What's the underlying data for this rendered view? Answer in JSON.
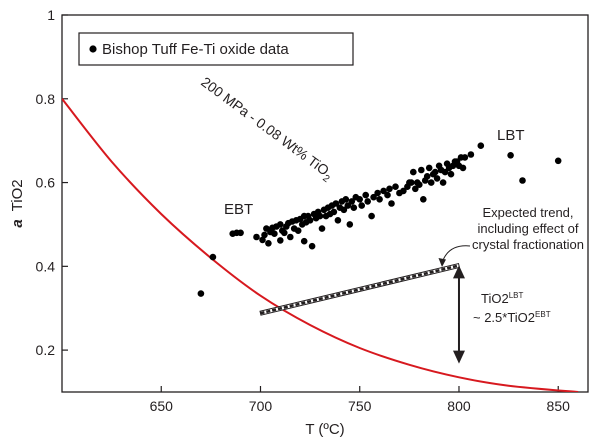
{
  "chart_data": {
    "type": "scatter",
    "xlabel": "T (ºC)",
    "ylabel_prefix": "a",
    "ylabel": "TiO2",
    "xlim": [
      600,
      865
    ],
    "ylim": [
      0.1,
      1.0
    ],
    "x_ticks": [
      650,
      700,
      750,
      800,
      850
    ],
    "y_ticks": [
      0.2,
      0.4,
      0.6,
      0.8,
      1.0
    ],
    "y_tick_labels": [
      "0.2",
      "0.4",
      "0.6",
      "0.8",
      "1"
    ],
    "grid": false,
    "legend": {
      "position": "top-left",
      "entries": [
        "Bishop Tuff Fe-Ti oxide data"
      ]
    },
    "series": [
      {
        "name": "Bishop Tuff Fe-Ti oxide data",
        "type": "scatter",
        "color": "#000000",
        "points": [
          [
            670,
            0.335
          ],
          [
            676,
            0.422
          ],
          [
            686,
            0.478
          ],
          [
            688,
            0.48
          ],
          [
            690,
            0.48
          ],
          [
            698,
            0.47
          ],
          [
            701,
            0.463
          ],
          [
            702,
            0.475
          ],
          [
            703,
            0.49
          ],
          [
            704,
            0.455
          ],
          [
            705,
            0.482
          ],
          [
            706,
            0.492
          ],
          [
            707,
            0.478
          ],
          [
            708,
            0.495
          ],
          [
            710,
            0.462
          ],
          [
            710,
            0.5
          ],
          [
            711,
            0.485
          ],
          [
            712,
            0.48
          ],
          [
            713,
            0.495
          ],
          [
            714,
            0.503
          ],
          [
            715,
            0.47
          ],
          [
            716,
            0.507
          ],
          [
            717,
            0.49
          ],
          [
            718,
            0.51
          ],
          [
            719,
            0.485
          ],
          [
            720,
            0.513
          ],
          [
            721,
            0.5
          ],
          [
            722,
            0.46
          ],
          [
            722,
            0.52
          ],
          [
            723,
            0.505
          ],
          [
            724,
            0.52
          ],
          [
            725,
            0.51
          ],
          [
            726,
            0.448
          ],
          [
            727,
            0.525
          ],
          [
            728,
            0.515
          ],
          [
            729,
            0.53
          ],
          [
            730,
            0.52
          ],
          [
            731,
            0.49
          ],
          [
            732,
            0.535
          ],
          [
            733,
            0.52
          ],
          [
            734,
            0.54
          ],
          [
            735,
            0.525
          ],
          [
            736,
            0.545
          ],
          [
            737,
            0.53
          ],
          [
            738,
            0.55
          ],
          [
            739,
            0.51
          ],
          [
            740,
            0.54
          ],
          [
            741,
            0.555
          ],
          [
            742,
            0.535
          ],
          [
            743,
            0.56
          ],
          [
            744,
            0.545
          ],
          [
            745,
            0.5
          ],
          [
            746,
            0.555
          ],
          [
            747,
            0.54
          ],
          [
            748,
            0.565
          ],
          [
            750,
            0.56
          ],
          [
            751,
            0.545
          ],
          [
            753,
            0.57
          ],
          [
            754,
            0.555
          ],
          [
            756,
            0.52
          ],
          [
            757,
            0.565
          ],
          [
            759,
            0.575
          ],
          [
            760,
            0.56
          ],
          [
            762,
            0.58
          ],
          [
            764,
            0.57
          ],
          [
            765,
            0.585
          ],
          [
            766,
            0.55
          ],
          [
            768,
            0.59
          ],
          [
            770,
            0.575
          ],
          [
            772,
            0.58
          ],
          [
            774,
            0.59
          ],
          [
            775,
            0.6
          ],
          [
            776,
            0.6
          ],
          [
            777,
            0.625
          ],
          [
            778,
            0.585
          ],
          [
            779,
            0.6
          ],
          [
            780,
            0.595
          ],
          [
            781,
            0.63
          ],
          [
            782,
            0.56
          ],
          [
            783,
            0.605
          ],
          [
            784,
            0.615
          ],
          [
            785,
            0.635
          ],
          [
            786,
            0.6
          ],
          [
            787,
            0.62
          ],
          [
            788,
            0.625
          ],
          [
            789,
            0.61
          ],
          [
            790,
            0.64
          ],
          [
            791,
            0.63
          ],
          [
            792,
            0.6
          ],
          [
            793,
            0.625
          ],
          [
            794,
            0.645
          ],
          [
            795,
            0.635
          ],
          [
            796,
            0.62
          ],
          [
            797,
            0.64
          ],
          [
            798,
            0.65
          ],
          [
            799,
            0.65
          ],
          [
            800,
            0.64
          ],
          [
            801,
            0.66
          ],
          [
            802,
            0.635
          ],
          [
            803,
            0.66
          ],
          [
            806,
            0.667
          ],
          [
            811,
            0.688
          ],
          [
            826,
            0.665
          ],
          [
            832,
            0.605
          ],
          [
            850,
            0.652
          ]
        ]
      },
      {
        "name": "200 MPa - 0.08 Wt% TiO2",
        "type": "line",
        "color": "#d7191f",
        "points": [
          [
            600,
            0.8
          ],
          [
            625,
            0.65
          ],
          [
            650,
            0.525
          ],
          [
            675,
            0.42
          ],
          [
            700,
            0.33
          ],
          [
            725,
            0.26
          ],
          [
            750,
            0.205
          ],
          [
            775,
            0.165
          ],
          [
            800,
            0.135
          ],
          [
            825,
            0.115
          ],
          [
            860,
            0.1
          ]
        ]
      },
      {
        "name": "Expected trend",
        "type": "line",
        "style": "dashed-box",
        "color": "#231f20",
        "points": [
          [
            700,
            0.288
          ],
          [
            800,
            0.402
          ]
        ]
      }
    ],
    "annotations": {
      "curve_label": {
        "main": "200 MPa - 0.08 Wt% TiO",
        "sub": "2"
      },
      "ebt": "EBT",
      "lbt": "LBT",
      "trend_note": [
        "Expected trend,",
        "including effect of",
        "crystal fractionation"
      ],
      "ratio_line1_main": "TiO2",
      "ratio_line1_sup": "LBT",
      "ratio_line2_main": "~ 2.5*TiO2",
      "ratio_line2_sup": "EBT",
      "ratio_arrow": {
        "x": 800,
        "y_top": 0.4,
        "y_bottom": 0.17
      }
    }
  }
}
